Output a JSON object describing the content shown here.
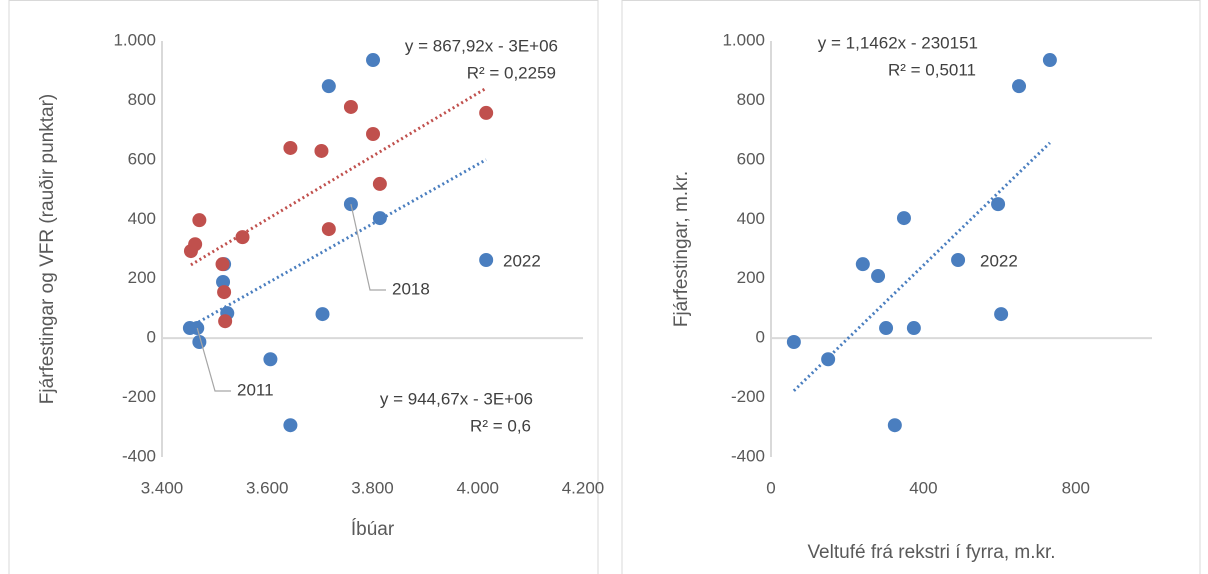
{
  "chart_data": [
    {
      "type": "scatter",
      "xlabel": "Íbúar",
      "ylabel": "Fjárfestingar og VFR (rauðir punktar)",
      "xlim": [
        3400,
        4200
      ],
      "xticks": [
        {
          "value": 3400,
          "label": "3.400"
        },
        {
          "value": 3600,
          "label": "3.600"
        },
        {
          "value": 3800,
          "label": "3.800"
        },
        {
          "value": 4000,
          "label": "4.000"
        },
        {
          "value": 4200,
          "label": "4.200"
        }
      ],
      "ylim": [
        -400,
        1000
      ],
      "yticks": [
        -400,
        -200,
        0,
        200,
        400,
        600,
        800,
        {
          "value": 1000,
          "label": "1.000"
        }
      ],
      "series": [
        {
          "color": "#4a7ebf",
          "x": [
            3453,
            3467,
            3471,
            3516,
            3518,
            3524,
            3606,
            3644,
            3705,
            3717,
            3759,
            3801,
            3814,
            4016
          ],
          "values": [
            34,
            34,
            -13,
            189,
            249,
            84,
            -71,
            -293,
            81,
            848,
            451,
            936,
            404,
            263
          ],
          "trendline": {
            "equation": "y = 944,67x - 3E+06",
            "r2": "R² = 0,6"
          }
        },
        {
          "color": "#c0504d",
          "x": [
            3455,
            3463,
            3471,
            3515,
            3518,
            3520,
            3553,
            3644,
            3703,
            3717,
            3759,
            3801,
            3814,
            4016
          ],
          "values": [
            293,
            316,
            397,
            249,
            155,
            57,
            340,
            640,
            630,
            367,
            778,
            687,
            519,
            758
          ],
          "trendline": {
            "equation": "y = 867,92x - 3E+06",
            "r2": "R² = 0,2259"
          }
        }
      ],
      "annotations": [
        "2011",
        "2018",
        "2022"
      ]
    },
    {
      "type": "scatter",
      "xlabel": "Veltufé frá rekstri í fyrra, m.kr.",
      "ylabel": "Fjárfestingar, m.kr.",
      "xlim": [
        0,
        1000
      ],
      "xticks": [
        0,
        400,
        800
      ],
      "ylim": [
        -400,
        1000
      ],
      "yticks": [
        -400,
        -200,
        0,
        200,
        400,
        600,
        800,
        {
          "value": 1000,
          "label": "1.000"
        }
      ],
      "series": [
        {
          "color": "#4a7ebf",
          "x": [
            60,
            150,
            241,
            281,
            302,
            325,
            349,
            375,
            491,
            596,
            604,
            651,
            732
          ],
          "values": [
            -13,
            -71,
            249,
            209,
            34,
            -293,
            404,
            34,
            263,
            451,
            81,
            848,
            936
          ],
          "trendline": {
            "equation": "y = 1,1462x - 230151",
            "r2": "R² = 0,5011"
          }
        }
      ],
      "annotations": [
        "2022"
      ]
    }
  ]
}
